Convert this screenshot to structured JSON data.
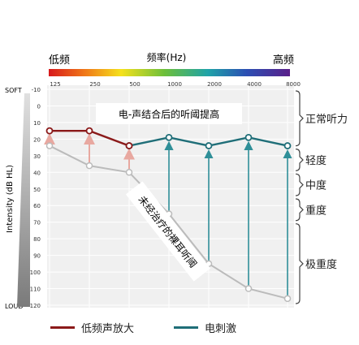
{
  "chart_data": {
    "type": "line",
    "header": {
      "label_low": "低频",
      "label_high": "高频",
      "freq_title": "频率(Hz)"
    },
    "x_categories": [
      "125",
      "250",
      "500",
      "1000",
      "2000",
      "4000",
      "8000"
    ],
    "y_ticks": [
      -10,
      0,
      10,
      20,
      30,
      40,
      50,
      60,
      70,
      80,
      90,
      100,
      110,
      120
    ],
    "ylim": [
      -10,
      120
    ],
    "ylabel": "Intensity (dB HL)",
    "y_end_labels": {
      "top": "SOFT",
      "bottom": "LOUD"
    },
    "series": [
      {
        "name": "低频声放大",
        "color": "#8b1a1a",
        "values": [
          15,
          15,
          24,
          null,
          null,
          null,
          null
        ]
      },
      {
        "name": "电刺激",
        "color": "#1f6e78",
        "values": [
          null,
          null,
          24,
          19,
          24,
          19,
          24
        ]
      }
    ],
    "untreated": {
      "color": "#bbbbbb",
      "values": [
        24,
        36,
        40,
        65,
        95,
        110,
        116
      ]
    },
    "ranges": [
      {
        "label": "正常听力",
        "from": -10,
        "to": 25
      },
      {
        "label": "轻度",
        "from": 25,
        "to": 40
      },
      {
        "label": "中度",
        "from": 40,
        "to": 55
      },
      {
        "label": "重度",
        "from": 55,
        "to": 70
      },
      {
        "label": "极重度",
        "from": 70,
        "to": 120
      }
    ],
    "annotations": {
      "improved": "电-声结合后的听阈提高",
      "untreated": "未经治疗的裸耳听阈"
    },
    "grid": true
  },
  "colors": {
    "red_line": "#8b1a1a",
    "teal_line": "#1f6e78",
    "red_arrow": "#e8a8a0",
    "teal_arrow": "#2f8f98",
    "gray_line": "#bbbbbb",
    "plot_bg": "#f0f0f0",
    "grid": "#ffffff"
  }
}
